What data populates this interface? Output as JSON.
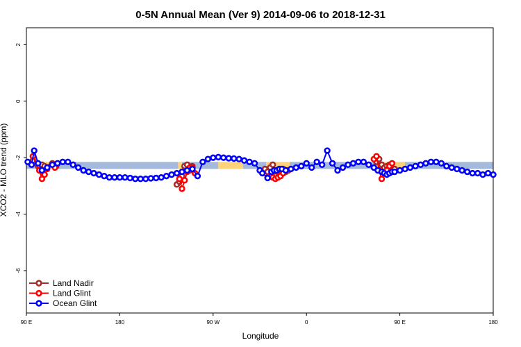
{
  "chart_data": {
    "type": "line",
    "title": "0-5N Annual Mean (Ver 9)   2014-09-06 to 2018-12-31",
    "xlabel": "Longitude",
    "ylabel": "XCO2 - MLO trend (ppm)",
    "xlim": [
      -180,
      180
    ],
    "ylim": [
      -7.5,
      2.6
    ],
    "x_ticks": [
      {
        "value": -180,
        "label": "90 E"
      },
      {
        "value": -108,
        "label": "180"
      },
      {
        "value": -36,
        "label": "90 W"
      },
      {
        "value": 36,
        "label": "0"
      },
      {
        "value": 108,
        "label": "90 E"
      },
      {
        "value": 180,
        "label": "180"
      }
    ],
    "y_ticks": [
      {
        "value": 2,
        "label": "2"
      },
      {
        "value": 0,
        "label": "0"
      },
      {
        "value": -2,
        "label": "-2"
      },
      {
        "value": -4,
        "label": "-4"
      },
      {
        "value": -6,
        "label": "-6"
      }
    ],
    "grid": false,
    "legend_position": "bottom-left",
    "bands": [
      {
        "name": "ocean",
        "color": "#a4b9dc",
        "y_range": [
          -2.4,
          -2.15
        ],
        "x_ranges": [
          [
            -180,
            -63
          ],
          [
            -60,
            -32
          ],
          [
            -13,
            5
          ],
          [
            23,
            180
          ]
        ]
      },
      {
        "name": "land",
        "color": "#fcd27a",
        "y_range": [
          -2.4,
          -2.15
        ],
        "x_ranges": [
          [
            -173,
            -158
          ],
          [
            -63,
            -60
          ],
          [
            -32,
            -13
          ],
          [
            5,
            23
          ],
          [
            89,
            112
          ]
        ]
      }
    ],
    "series": [
      {
        "name": "Land Nadir",
        "color": "#a52a2a",
        "x": [
          -175,
          -171,
          -168,
          -166,
          -160,
          -157,
          -64,
          -62,
          -60,
          -58,
          -56,
          -54,
          -52,
          4,
          6,
          8,
          10,
          12,
          14,
          16,
          18,
          20,
          22,
          90,
          92,
          94,
          96,
          98,
          100,
          104
        ],
        "y": [
          -2.1,
          -2.3,
          -2.25,
          -2.3,
          -2.2,
          -2.3,
          -2.95,
          -2.85,
          -2.65,
          -2.3,
          -2.25,
          -2.45,
          -2.3,
          -2.4,
          -2.5,
          -2.35,
          -2.25,
          -2.65,
          -2.7,
          -2.6,
          -2.4,
          -2.5,
          -2.45,
          -2.15,
          -2.05,
          -2.25,
          -2.35,
          -2.3,
          -2.25,
          -2.4
        ]
      },
      {
        "name": "Land Glint",
        "color": "#ff0000",
        "x": [
          -175,
          -170,
          -168,
          -166,
          -164,
          -160,
          -158,
          -62,
          -60,
          -58,
          -56,
          -54,
          -52,
          -50,
          6,
          8,
          10,
          12,
          14,
          16,
          18,
          20,
          88,
          90,
          92,
          94,
          96,
          98,
          100,
          102
        ],
        "y": [
          -1.95,
          -2.45,
          -2.75,
          -2.6,
          -2.4,
          -2.25,
          -2.35,
          -2.75,
          -3.1,
          -2.8,
          -2.5,
          -2.35,
          -2.35,
          -2.55,
          -2.7,
          -2.65,
          -2.7,
          -2.75,
          -2.7,
          -2.65,
          -2.55,
          -2.45,
          -2.05,
          -1.95,
          -2.45,
          -2.75,
          -2.5,
          -2.45,
          -2.3,
          -2.2
        ]
      },
      {
        "name": "Ocean Glint",
        "color": "#0000ff",
        "x": [
          -179,
          -176,
          -174,
          -171,
          -168,
          -164,
          -160,
          -156,
          -152,
          -148,
          -144,
          -140,
          -136,
          -132,
          -128,
          -124,
          -120,
          -116,
          -112,
          -108,
          -104,
          -100,
          -96,
          -92,
          -88,
          -84,
          -80,
          -76,
          -72,
          -68,
          -64,
          -60,
          -56,
          -52,
          -48,
          -44,
          -40,
          -36,
          -32,
          -28,
          -24,
          -20,
          -16,
          -12,
          -8,
          -4,
          0,
          2,
          6,
          9,
          11,
          13,
          15,
          17,
          20,
          24,
          28,
          32,
          36,
          40,
          44,
          48,
          52,
          56,
          60,
          64,
          68,
          72,
          76,
          80,
          84,
          88,
          91,
          94,
          96,
          98,
          100,
          102,
          104,
          108,
          112,
          116,
          120,
          124,
          128,
          132,
          136,
          140,
          144,
          148,
          152,
          156,
          160,
          164,
          168,
          172,
          176,
          180
        ],
        "y": [
          -2.15,
          -2.25,
          -1.75,
          -2.2,
          -2.45,
          -2.35,
          -2.25,
          -2.2,
          -2.15,
          -2.15,
          -2.25,
          -2.35,
          -2.45,
          -2.5,
          -2.55,
          -2.6,
          -2.65,
          -2.7,
          -2.7,
          -2.7,
          -2.7,
          -2.72,
          -2.75,
          -2.75,
          -2.75,
          -2.73,
          -2.72,
          -2.7,
          -2.65,
          -2.6,
          -2.55,
          -2.5,
          -2.45,
          -2.4,
          -2.65,
          -2.15,
          -2.05,
          -2.0,
          -1.98,
          -2.0,
          -2.02,
          -2.03,
          -2.05,
          -2.1,
          -2.15,
          -2.2,
          -2.45,
          -2.55,
          -2.72,
          -2.5,
          -2.45,
          -2.45,
          -2.4,
          -2.4,
          -2.45,
          -2.4,
          -2.35,
          -2.3,
          -2.2,
          -2.35,
          -2.15,
          -2.25,
          -1.75,
          -2.2,
          -2.45,
          -2.35,
          -2.25,
          -2.2,
          -2.15,
          -2.15,
          -2.25,
          -2.35,
          -2.45,
          -2.5,
          -2.55,
          -2.6,
          -2.55,
          -2.5,
          -2.5,
          -2.45,
          -2.4,
          -2.35,
          -2.3,
          -2.25,
          -2.2,
          -2.15,
          -2.15,
          -2.2,
          -2.3,
          -2.35,
          -2.4,
          -2.45,
          -2.5,
          -2.55,
          -2.55,
          -2.6,
          -2.55,
          -2.6
        ]
      }
    ]
  }
}
